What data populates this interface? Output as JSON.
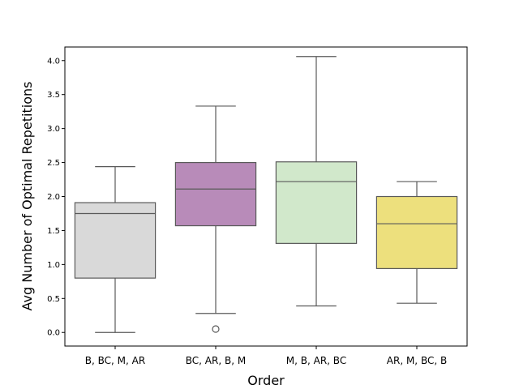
{
  "chart_data": {
    "type": "box",
    "title": "",
    "xlabel": "Order",
    "ylabel": "Avg Number of Optimal Repetitions",
    "ylim": [
      -0.2,
      4.2
    ],
    "yticks": [
      "0.0",
      "0.5",
      "1.0",
      "1.5",
      "2.0",
      "2.5",
      "3.0",
      "3.5",
      "4.0"
    ],
    "grid": false,
    "categories": [
      "B, BC, M, AR",
      "BC, AR, B, M",
      "M, B, AR, BC",
      "AR, M, BC, B"
    ],
    "boxes": [
      {
        "category": "B, BC, M, AR",
        "whisker_low": 0.0,
        "q1": 0.8,
        "median": 1.75,
        "q3": 1.91,
        "whisker_high": 2.44,
        "outliers": [],
        "color": "#d9d9d9"
      },
      {
        "category": "BC, AR, B, M",
        "whisker_low": 0.28,
        "q1": 1.57,
        "median": 2.11,
        "q3": 2.5,
        "whisker_high": 3.33,
        "outliers": [
          0.05
        ],
        "color": "#b88bb9"
      },
      {
        "category": "M, B, AR, BC",
        "whisker_low": 0.39,
        "q1": 1.31,
        "median": 2.22,
        "q3": 2.51,
        "whisker_high": 4.06,
        "outliers": [],
        "color": "#d1e8cb"
      },
      {
        "category": "AR, M, BC, B",
        "whisker_low": 0.43,
        "q1": 0.94,
        "median": 1.6,
        "q3": 2.0,
        "whisker_high": 2.22,
        "outliers": [],
        "color": "#ede07d"
      }
    ]
  }
}
